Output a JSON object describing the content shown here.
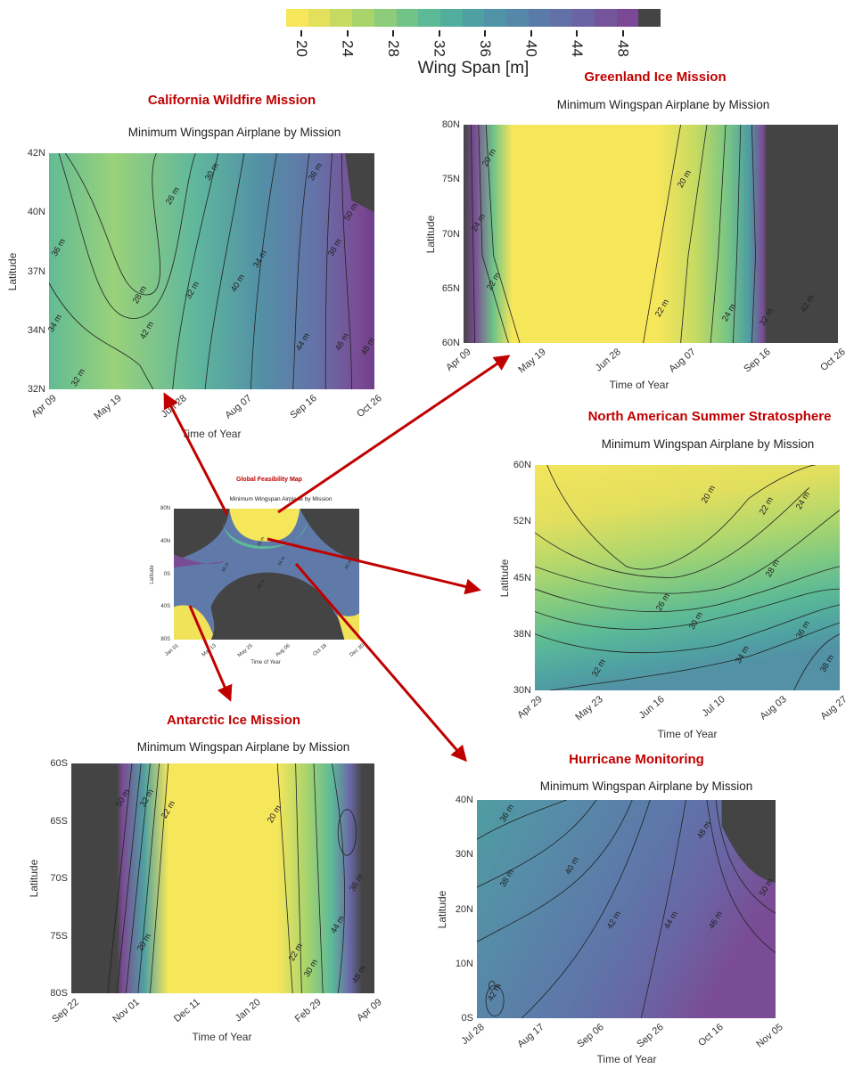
{
  "colorbar": {
    "label": "Wing Span [m]",
    "ticks": [
      "20",
      "24",
      "28",
      "32",
      "36",
      "40",
      "44",
      "48"
    ],
    "colors": [
      "#f6e65a",
      "#e3e05c",
      "#c6da62",
      "#a9d46c",
      "#8ccc7b",
      "#72c388",
      "#5cba96",
      "#51ae9d",
      "#4fa0a2",
      "#5093a6",
      "#5487a8",
      "#5a7aa9",
      "#6270a8",
      "#6c63a4",
      "#74559c",
      "#7b4895",
      "#444444"
    ]
  },
  "chart_data": [
    {
      "id": "california",
      "type": "contour",
      "mission": "California Wildfire Mission",
      "title": "Minimum Wingspan Airplane by Mission",
      "xlabel": "Time of Year",
      "ylabel": "Latitude",
      "xticks": [
        "Apr 09",
        "May 19",
        "Jun 28",
        "Aug 07",
        "Sep 16",
        "Oct 26"
      ],
      "yticks": [
        "42N",
        "40N",
        "37N",
        "34N",
        "32N"
      ],
      "contour_labels": [
        "26 m",
        "28 m",
        "30 m",
        "32 m",
        "34 m",
        "36 m",
        "38 m",
        "40 m",
        "42 m",
        "44 m",
        "46 m",
        "48 m",
        "50 m",
        "32 m",
        "34 m",
        "36 m"
      ],
      "zrange_m": [
        26,
        50
      ]
    },
    {
      "id": "greenland",
      "type": "contour",
      "mission": "Greenland Ice Mission",
      "title": "Minimum Wingspan Airplane by Mission",
      "xlabel": "Time of Year",
      "ylabel": "Latitude",
      "xticks": [
        "Apr 09",
        "May 19",
        "Jun 28",
        "Aug 07",
        "Sep 16",
        "Oct 26"
      ],
      "yticks": [
        "80N",
        "75N",
        "70N",
        "65N",
        "60N"
      ],
      "contour_labels": [
        "20 m",
        "22 m",
        "24 m",
        "20 m",
        "22 m",
        "24 m",
        "32 m",
        "42 m"
      ],
      "zrange_m": [
        20,
        50
      ]
    },
    {
      "id": "na_stratosphere",
      "type": "contour",
      "mission": "North American Summer Stratosphere",
      "title": "Minimum Wingspan Airplane by Mission",
      "xlabel": "Time of Year",
      "ylabel": "Latitude",
      "xticks": [
        "Apr 29",
        "May 23",
        "Jun 16",
        "Jul 10",
        "Aug 03",
        "Aug 27"
      ],
      "yticks": [
        "60N",
        "52N",
        "45N",
        "38N",
        "30N"
      ],
      "contour_labels": [
        "20 m",
        "22 m",
        "24 m",
        "26 m",
        "28 m",
        "30 m",
        "32 m",
        "34 m",
        "36 m",
        "38 m"
      ],
      "zrange_m": [
        20,
        38
      ]
    },
    {
      "id": "global",
      "type": "contour",
      "mission": "Global Feasibility Map",
      "title": "Minimum Wingspan Airplane by Mission",
      "xlabel": "Time of Year",
      "ylabel": "Latitude",
      "xticks": [
        "Jan 01",
        "Mar 13",
        "May 25",
        "Aug 06",
        "Oct 18",
        "Dec 30"
      ],
      "yticks": [
        "80N",
        "40N",
        "0S",
        "40S",
        "80S"
      ],
      "contour_labels": [
        "20 m",
        "36 m",
        "40 m",
        "44 m",
        "44 m"
      ],
      "zrange_m": [
        20,
        50
      ]
    },
    {
      "id": "antarctic",
      "type": "contour",
      "mission": "Antarctic Ice Mission",
      "title": "Minimum Wingspan Airplane by Mission",
      "xlabel": "Time of Year",
      "ylabel": "Latitude",
      "xticks": [
        "Sep 22",
        "Nov 01",
        "Dec 11",
        "Jan 20",
        "Feb 29",
        "Apr 09"
      ],
      "yticks": [
        "60S",
        "65S",
        "70S",
        "75S",
        "80S"
      ],
      "contour_labels": [
        "50 m",
        "32 m",
        "22 m",
        "20 m",
        "20 m",
        "22 m",
        "30 m",
        "38 m",
        "44 m",
        "48 m"
      ],
      "zrange_m": [
        20,
        50
      ]
    },
    {
      "id": "hurricane",
      "type": "contour",
      "mission": "Hurricane Monitoring",
      "title": "Minimum Wingspan Airplane by Mission",
      "xlabel": "Time of Year",
      "ylabel": "Latitude",
      "xticks": [
        "Jul 28",
        "Aug 17",
        "Sep 06",
        "Sep 26",
        "Oct 16",
        "Nov 05"
      ],
      "yticks": [
        "40N",
        "30N",
        "20N",
        "10N",
        "0S"
      ],
      "contour_labels": [
        "36 m",
        "38 m",
        "40 m",
        "42 m",
        "44 m",
        "46 m",
        "48 m",
        "50 m",
        "42 m"
      ],
      "zrange_m": [
        36,
        50
      ]
    }
  ]
}
